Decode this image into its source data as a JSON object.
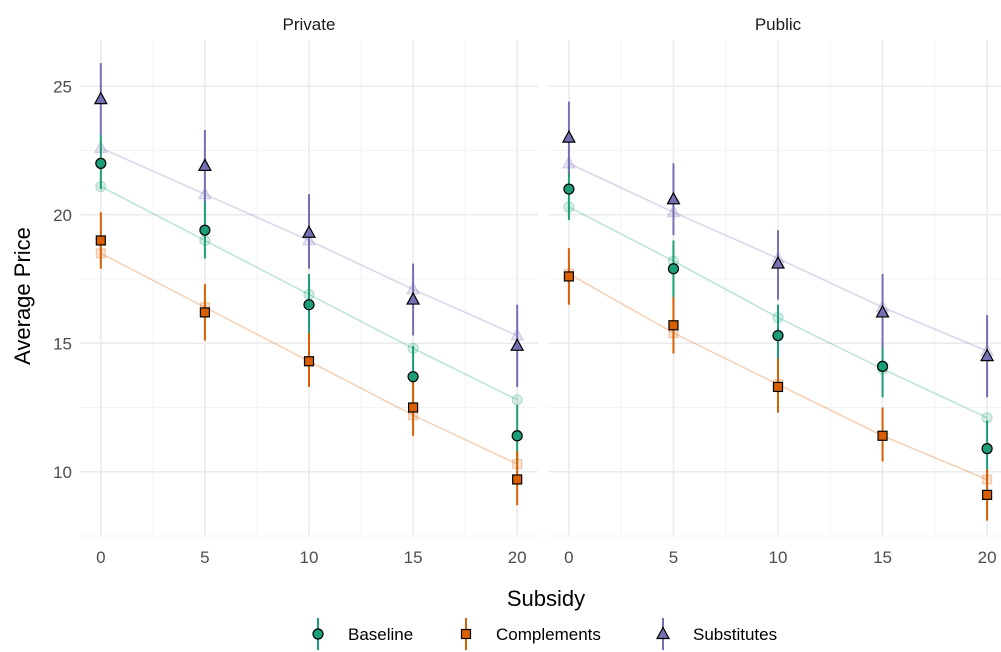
{
  "chart_data": {
    "type": "line",
    "xlabel": "Subsidy",
    "ylabel": "Average Price",
    "x": [
      0,
      5,
      10,
      15,
      20
    ],
    "xlim": [
      -1,
      21
    ],
    "ylim": [
      7.5,
      26.8
    ],
    "x_ticks": [
      "0",
      "5",
      "10",
      "15",
      "20"
    ],
    "y_ticks": [
      "10",
      "15",
      "20",
      "25"
    ],
    "grid": true,
    "legend_position": "bottom",
    "panels": [
      {
        "title": "Private",
        "series": [
          {
            "name": "Baseline",
            "observed": [
              22.0,
              19.4,
              16.5,
              13.7,
              11.4
            ],
            "lower": [
              21.0,
              18.3,
              15.3,
              12.6,
              10.3
            ],
            "upper": [
              23.1,
              20.6,
              17.7,
              14.9,
              12.6
            ],
            "fitted": [
              21.1,
              19.0,
              16.9,
              14.8,
              12.8
            ]
          },
          {
            "name": "Complements",
            "observed": [
              19.0,
              16.2,
              14.3,
              12.5,
              9.7
            ],
            "lower": [
              17.9,
              15.1,
              13.3,
              11.4,
              8.7
            ],
            "upper": [
              20.1,
              17.3,
              15.4,
              13.6,
              10.8
            ],
            "fitted": [
              18.5,
              16.4,
              14.3,
              12.2,
              10.3
            ]
          },
          {
            "name": "Substitutes",
            "observed": [
              24.5,
              21.9,
              19.3,
              16.7,
              14.9
            ],
            "lower": [
              23.1,
              20.5,
              17.9,
              15.3,
              13.3
            ],
            "upper": [
              25.9,
              23.3,
              20.8,
              18.1,
              16.5
            ],
            "fitted": [
              22.6,
              20.8,
              19.0,
              17.1,
              15.3
            ]
          }
        ]
      },
      {
        "title": "Public",
        "series": [
          {
            "name": "Baseline",
            "observed": [
              21.0,
              17.9,
              15.3,
              14.1,
              10.9
            ],
            "lower": [
              19.8,
              16.7,
              14.2,
              12.9,
              9.7
            ],
            "upper": [
              22.2,
              19.0,
              16.5,
              15.2,
              12.0
            ],
            "fitted": [
              20.3,
              18.2,
              16.0,
              14.0,
              12.1
            ]
          },
          {
            "name": "Complements",
            "observed": [
              17.6,
              15.7,
              13.3,
              11.4,
              9.1
            ],
            "lower": [
              16.5,
              14.6,
              12.3,
              10.4,
              8.1
            ],
            "upper": [
              18.7,
              16.8,
              14.4,
              12.5,
              10.1
            ],
            "fitted": [
              17.7,
              15.4,
              13.4,
              11.4,
              9.7
            ]
          },
          {
            "name": "Substitutes",
            "observed": [
              23.0,
              20.6,
              18.1,
              16.2,
              14.5
            ],
            "lower": [
              21.6,
              19.2,
              16.7,
              14.8,
              12.9
            ],
            "upper": [
              24.4,
              22.0,
              19.4,
              17.7,
              16.1
            ],
            "fitted": [
              22.0,
              20.1,
              18.3,
              16.4,
              14.7
            ]
          }
        ]
      }
    ]
  },
  "colors": {
    "Baseline": "#1B9E77",
    "Complements": "#D95F02",
    "Substitutes": "#7570B3",
    "grid_major": "#ebebeb",
    "grid_minor": "#f4f4f4"
  },
  "markers": {
    "Baseline": "circle",
    "Complements": "square",
    "Substitutes": "triangle"
  }
}
